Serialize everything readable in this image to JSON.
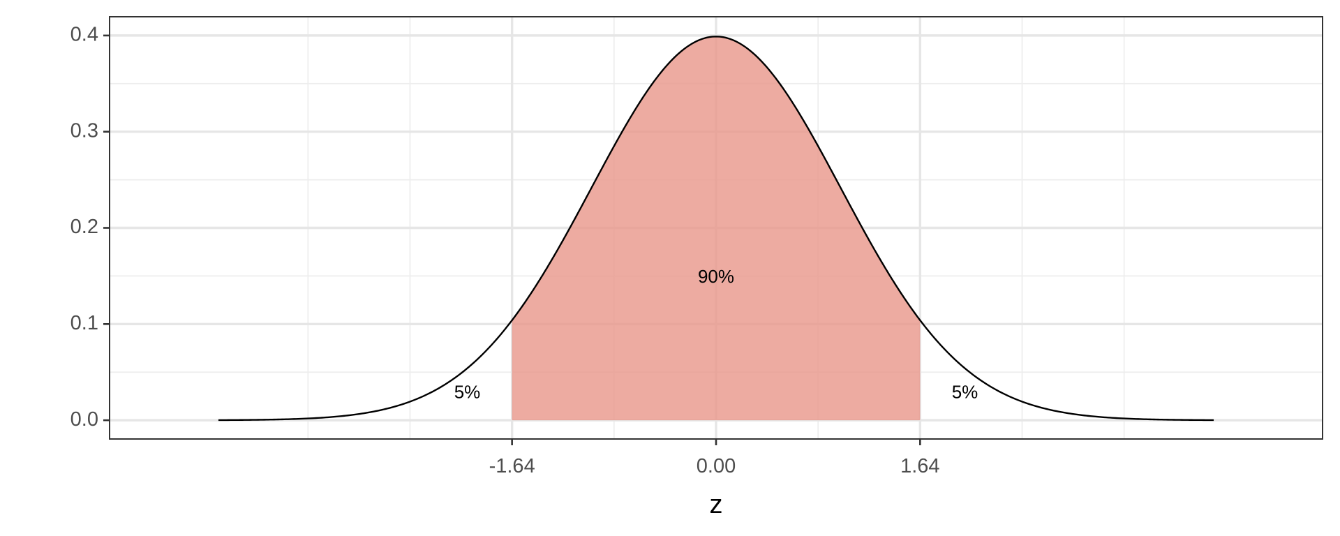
{
  "chart_data": {
    "type": "area",
    "title": "",
    "xlabel": "z",
    "ylabel": "",
    "xlim": [
      -4.875,
      4.875
    ],
    "ylim": [
      -0.0195,
      0.4195
    ],
    "x_ticks": [
      -1.64,
      0.0,
      1.64
    ],
    "x_tick_labels": [
      "-1.64",
      "0.00",
      "1.64"
    ],
    "y_ticks": [
      0.0,
      0.1,
      0.2,
      0.3,
      0.4
    ],
    "y_tick_labels": [
      "0.0",
      "0.1",
      "0.2",
      "0.3",
      "0.4"
    ],
    "x_minor_gridlines": [
      -3.28,
      -2.46,
      -0.82,
      0.82,
      2.46,
      3.28
    ],
    "y_minor_gridlines": [
      0.05,
      0.15,
      0.25,
      0.35
    ],
    "grid": true,
    "series": [
      {
        "distribution": "standard normal density",
        "x_range": [
          -4,
          4
        ],
        "line_color": "#000000",
        "shaded_interval": [
          -1.64,
          1.64
        ],
        "shade_color": "#e8968a"
      }
    ],
    "annotations": [
      {
        "text": "5%",
        "x": -2.0,
        "y": 0.028
      },
      {
        "text": "90%",
        "x": 0.0,
        "y": 0.148
      },
      {
        "text": "5%",
        "x": 2.0,
        "y": 0.028
      }
    ]
  }
}
